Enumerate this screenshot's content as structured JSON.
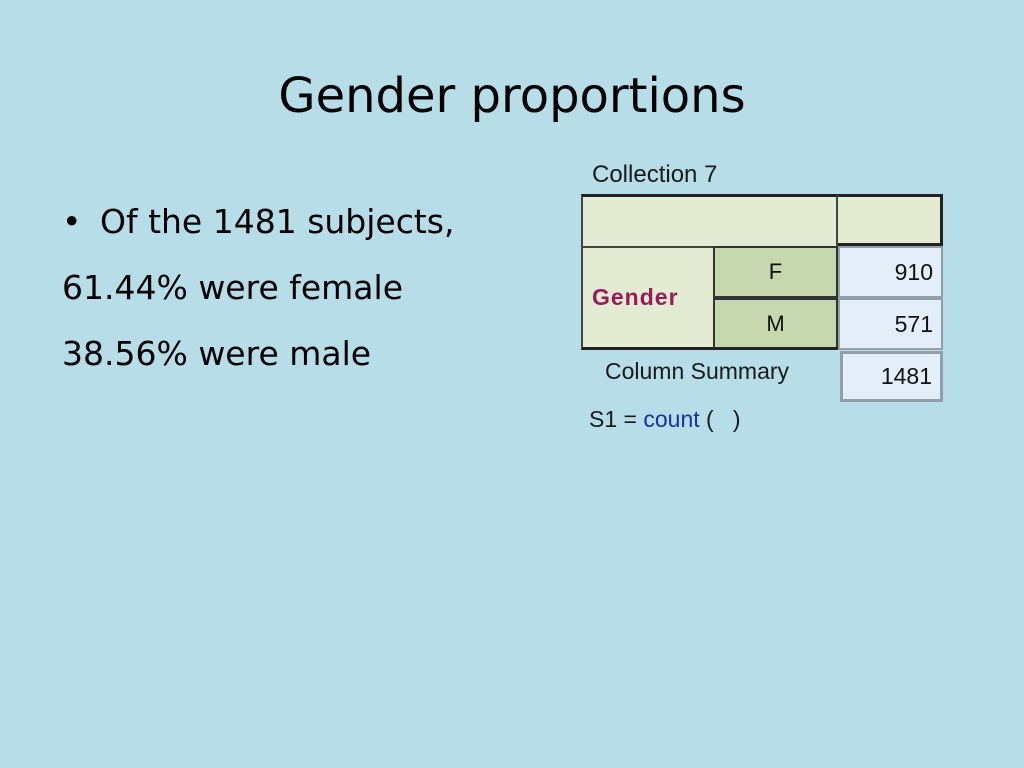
{
  "slide": {
    "title": "Gender proportions",
    "bullet_glyph": "•",
    "lines": [
      "Of the 1481 subjects,",
      "61.44% were female",
      "38.56% were male"
    ]
  },
  "table": {
    "caption": "Collection 7",
    "row_group_label": "Gender",
    "rows": [
      {
        "category": "F",
        "value": "910"
      },
      {
        "category": "M",
        "value": "571"
      }
    ],
    "summary_label": "Column Summary",
    "summary_value": "1481",
    "formula_prefix": "S1 =",
    "formula_function": "count",
    "formula_args": "(   )",
    "colors": {
      "background": "#b6dde8",
      "header_fill": "#e3ecd2",
      "category_fill": "#c8d8ae",
      "value_fill": "#e4eef8",
      "gender_label": "#9a1a5c",
      "formula_function": "#1a2fa0"
    }
  }
}
